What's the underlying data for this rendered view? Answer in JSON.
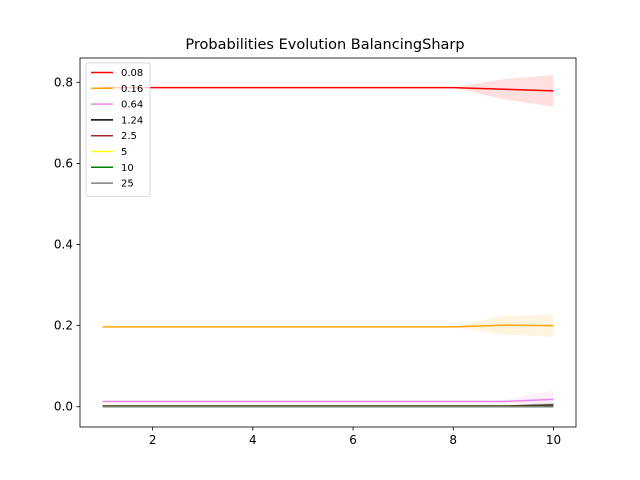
{
  "chart_data": {
    "type": "line",
    "title": "Probabilities Evolution BalancingSharp",
    "xlabel": "",
    "ylabel": "",
    "xlim": [
      0.55,
      10.45
    ],
    "ylim": [
      -0.05,
      0.86
    ],
    "xticks": [
      2,
      4,
      6,
      8,
      10
    ],
    "yticks": [
      0.0,
      0.2,
      0.4,
      0.6,
      0.8
    ],
    "grid": false,
    "legend_position": "upper-left",
    "x": [
      1,
      2,
      3,
      4,
      5,
      6,
      7,
      8,
      9,
      10
    ],
    "series": [
      {
        "name": "0.08",
        "color": "#ff0000",
        "values": [
          0.787,
          0.787,
          0.787,
          0.787,
          0.787,
          0.787,
          0.787,
          0.787,
          0.783,
          0.779
        ],
        "lower": [
          0.787,
          0.787,
          0.787,
          0.787,
          0.787,
          0.787,
          0.787,
          0.787,
          0.758,
          0.74
        ],
        "upper": [
          0.787,
          0.787,
          0.787,
          0.787,
          0.787,
          0.787,
          0.787,
          0.787,
          0.808,
          0.818
        ]
      },
      {
        "name": "0.16",
        "color": "#ffa500",
        "values": [
          0.197,
          0.197,
          0.197,
          0.197,
          0.197,
          0.197,
          0.197,
          0.197,
          0.201,
          0.2
        ],
        "lower": [
          0.197,
          0.197,
          0.197,
          0.197,
          0.197,
          0.197,
          0.197,
          0.197,
          0.178,
          0.173
        ],
        "upper": [
          0.197,
          0.197,
          0.197,
          0.197,
          0.197,
          0.197,
          0.197,
          0.197,
          0.224,
          0.227
        ]
      },
      {
        "name": "0.64",
        "color": "#ee82ee",
        "values": [
          0.013,
          0.013,
          0.013,
          0.013,
          0.013,
          0.013,
          0.013,
          0.013,
          0.013,
          0.018
        ],
        "lower": [
          0.013,
          0.013,
          0.013,
          0.013,
          0.013,
          0.013,
          0.013,
          0.013,
          0.01,
          0.0
        ],
        "upper": [
          0.013,
          0.013,
          0.013,
          0.013,
          0.013,
          0.013,
          0.013,
          0.013,
          0.016,
          0.04
        ]
      },
      {
        "name": "1.24",
        "color": "#000000",
        "values": [
          0.002,
          0.002,
          0.002,
          0.002,
          0.002,
          0.002,
          0.002,
          0.002,
          0.002,
          0.004
        ],
        "lower": [
          0.002,
          0.002,
          0.002,
          0.002,
          0.002,
          0.002,
          0.002,
          0.002,
          0.001,
          0.0
        ],
        "upper": [
          0.002,
          0.002,
          0.002,
          0.002,
          0.002,
          0.002,
          0.002,
          0.002,
          0.003,
          0.01
        ]
      },
      {
        "name": "2.5",
        "color": "#a52a2a",
        "values": [
          0.001,
          0.001,
          0.001,
          0.001,
          0.001,
          0.001,
          0.001,
          0.001,
          0.001,
          0.001
        ],
        "lower": [
          0.001,
          0.001,
          0.001,
          0.001,
          0.001,
          0.001,
          0.001,
          0.001,
          0.001,
          0.0
        ],
        "upper": [
          0.001,
          0.001,
          0.001,
          0.001,
          0.001,
          0.001,
          0.001,
          0.001,
          0.001,
          0.003
        ]
      },
      {
        "name": "5",
        "color": "#ffff00",
        "values": [
          0.0005,
          0.0005,
          0.0005,
          0.0005,
          0.0005,
          0.0005,
          0.0005,
          0.0005,
          0.0005,
          0.0005
        ],
        "lower": [
          0.0005,
          0.0005,
          0.0005,
          0.0005,
          0.0005,
          0.0005,
          0.0005,
          0.0005,
          0.0005,
          0.0
        ],
        "upper": [
          0.0005,
          0.0005,
          0.0005,
          0.0005,
          0.0005,
          0.0005,
          0.0005,
          0.0005,
          0.0005,
          0.001
        ]
      },
      {
        "name": "10",
        "color": "#008000",
        "values": [
          0.0003,
          0.0003,
          0.0003,
          0.0003,
          0.0003,
          0.0003,
          0.0003,
          0.0003,
          0.0003,
          0.0003
        ],
        "lower": [
          0.0003,
          0.0003,
          0.0003,
          0.0003,
          0.0003,
          0.0003,
          0.0003,
          0.0003,
          0.0003,
          0.0
        ],
        "upper": [
          0.0003,
          0.0003,
          0.0003,
          0.0003,
          0.0003,
          0.0003,
          0.0003,
          0.0003,
          0.0003,
          0.001
        ]
      },
      {
        "name": "25",
        "color": "#808080",
        "values": [
          0.0002,
          0.0002,
          0.0002,
          0.0002,
          0.0002,
          0.0002,
          0.0002,
          0.0002,
          0.0002,
          0.0002
        ],
        "lower": [
          0.0002,
          0.0002,
          0.0002,
          0.0002,
          0.0002,
          0.0002,
          0.0002,
          0.0002,
          0.0002,
          0.0
        ],
        "upper": [
          0.0002,
          0.0002,
          0.0002,
          0.0002,
          0.0002,
          0.0002,
          0.0002,
          0.0002,
          0.0002,
          0.001
        ]
      }
    ]
  }
}
